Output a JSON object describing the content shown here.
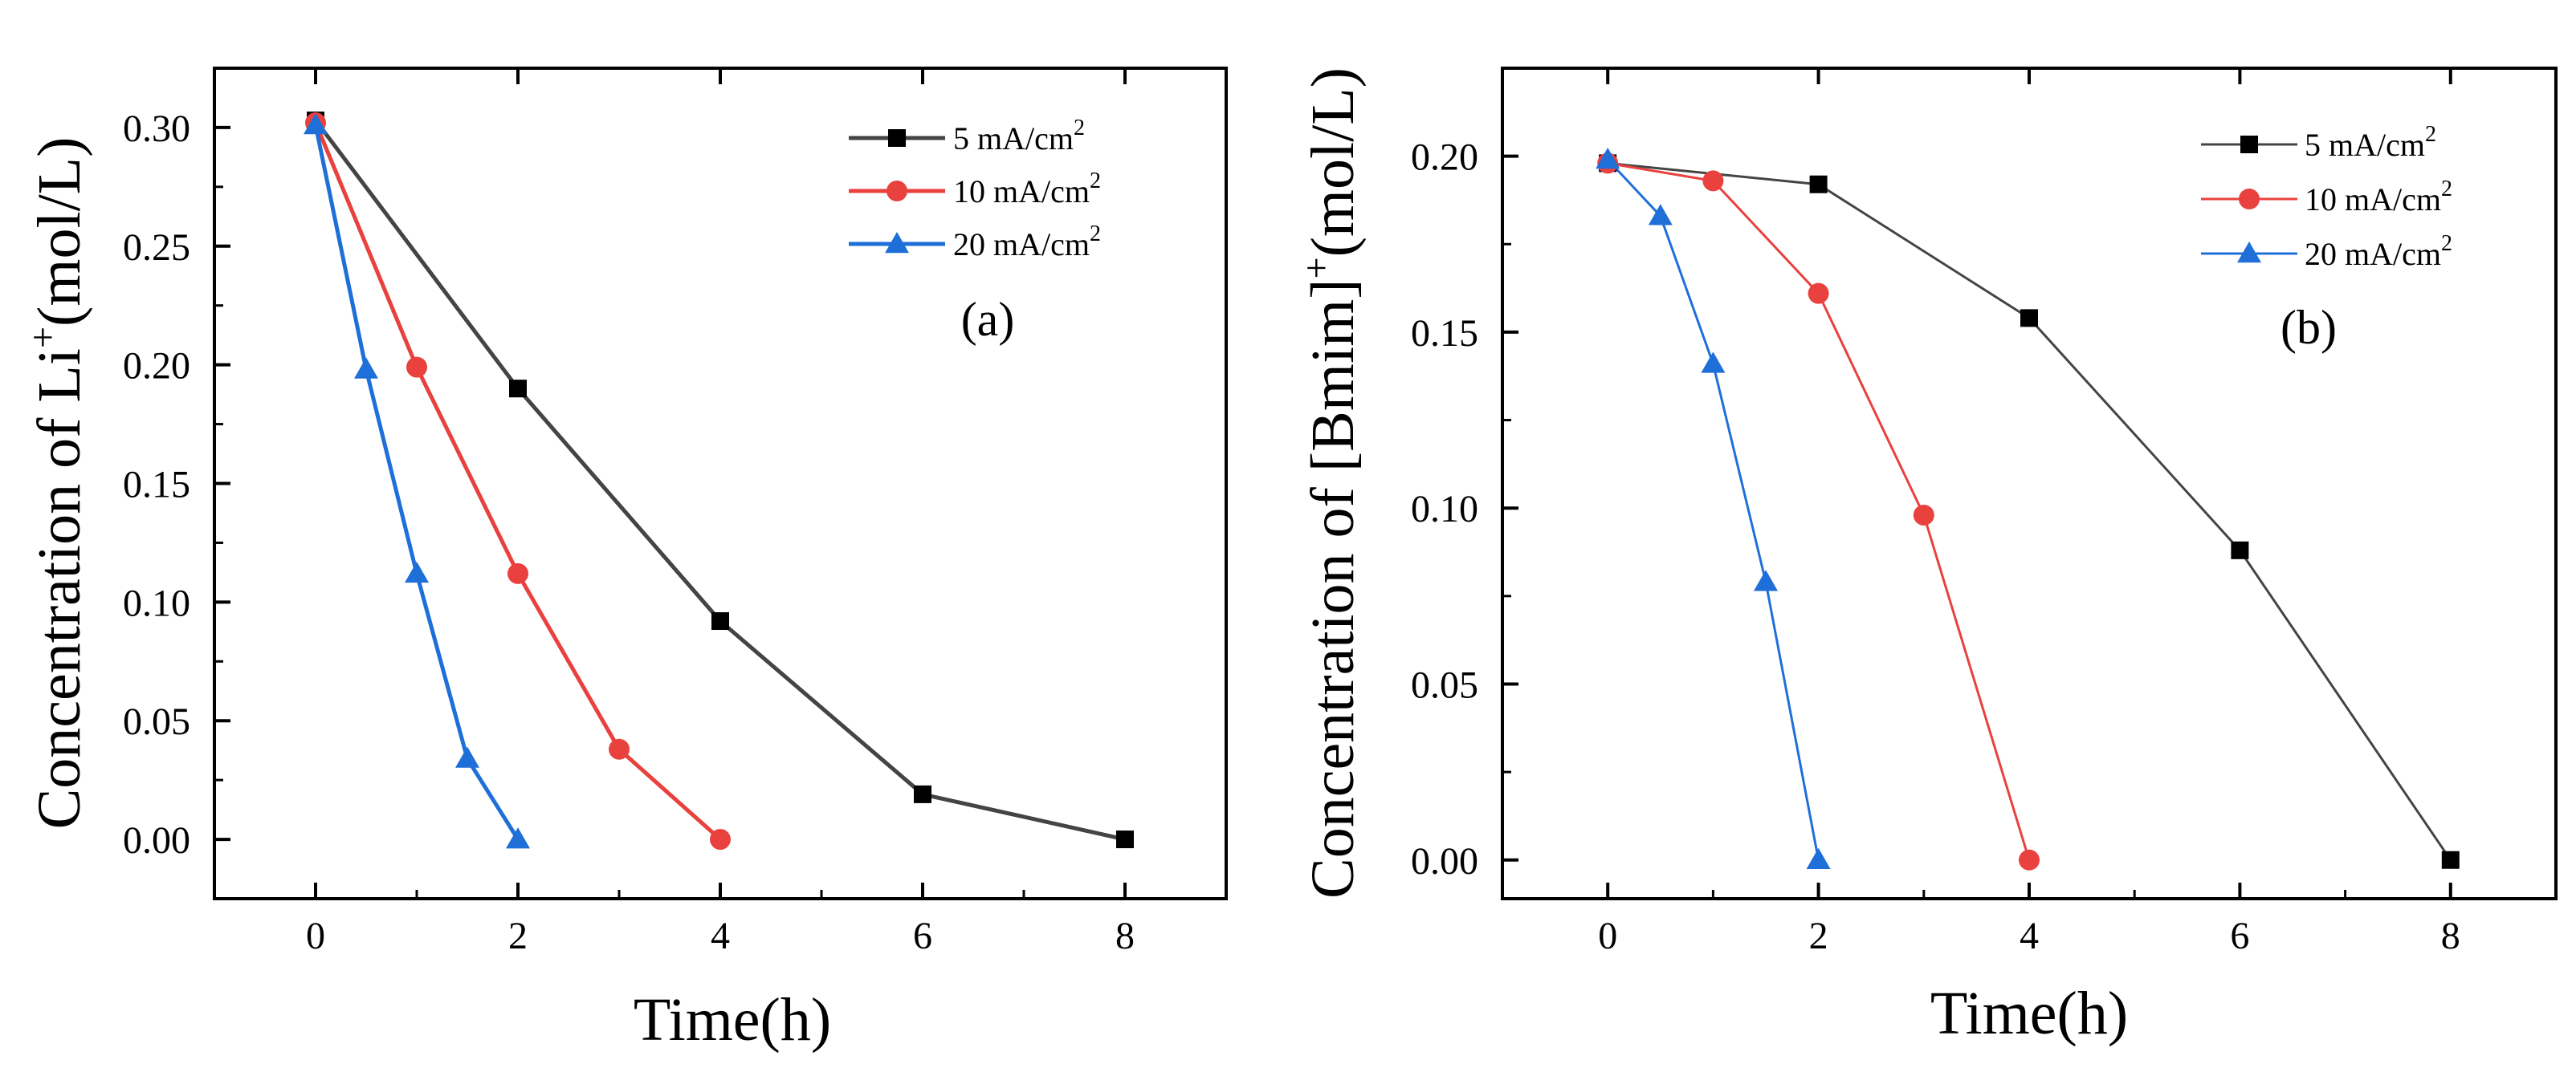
{
  "chart_data": [
    {
      "type": "line",
      "panel_label": "(a)",
      "xlabel": "Time(h)",
      "ylabel": {
        "main": "Concentration of Li",
        "sup": "+",
        "tail": "(mol/L)"
      },
      "xlim": [
        -1,
        9
      ],
      "ylim": [
        -0.025,
        0.325
      ],
      "xticks": [
        0,
        2,
        4,
        6,
        8
      ],
      "xtick_labels": [
        "0",
        "2",
        "4",
        "6",
        "8"
      ],
      "yticks": [
        0.0,
        0.05,
        0.1,
        0.15,
        0.2,
        0.25,
        0.3
      ],
      "ytick_labels": [
        "0.00",
        "0.05",
        "0.10",
        "0.15",
        "0.20",
        "0.25",
        "0.30"
      ],
      "legend_position": "top-right",
      "series": [
        {
          "name": "5 mA/cm",
          "sup": "2",
          "marker": "square",
          "color": "#000000",
          "line_color": "#444444",
          "x": [
            0,
            2,
            4,
            6,
            8
          ],
          "y": [
            0.303,
            0.19,
            0.092,
            0.019,
            0.0
          ]
        },
        {
          "name": "10 mA/cm",
          "sup": "2",
          "marker": "circle",
          "color": "#e8413e",
          "line_color": "#e8413e",
          "x": [
            0,
            1,
            2,
            3,
            4
          ],
          "y": [
            0.302,
            0.199,
            0.112,
            0.038,
            0.0
          ]
        },
        {
          "name": "20 mA/cm",
          "sup": "2",
          "marker": "triangle",
          "color": "#1f6fd9",
          "line_color": "#1f6fd9",
          "x": [
            0,
            0.5,
            1,
            1.5,
            2
          ],
          "y": [
            0.301,
            0.198,
            0.112,
            0.034,
            0.0
          ]
        }
      ]
    },
    {
      "type": "line",
      "panel_label": "(b)",
      "xlabel": "Time(h)",
      "ylabel": {
        "main": "Concentration of [Bmim]",
        "sup": "+",
        "tail": "(mol/L)"
      },
      "xlim": [
        -1,
        9
      ],
      "ylim": [
        -0.011,
        0.225
      ],
      "xticks": [
        0,
        2,
        4,
        6,
        8
      ],
      "xtick_labels": [
        "0",
        "2",
        "4",
        "6",
        "8"
      ],
      "yticks": [
        0.0,
        0.05,
        0.1,
        0.15,
        0.2
      ],
      "ytick_labels": [
        "0.00",
        "0.05",
        "0.10",
        "0.15",
        "0.20"
      ],
      "legend_position": "top-right",
      "series": [
        {
          "name": "5 mA/cm",
          "sup": "2",
          "marker": "square",
          "color": "#000000",
          "line_color": "#444444",
          "x": [
            0,
            2,
            4,
            6,
            8
          ],
          "y": [
            0.198,
            0.192,
            0.154,
            0.088,
            0.0
          ]
        },
        {
          "name": "10 mA/cm",
          "sup": "2",
          "marker": "circle",
          "color": "#e8413e",
          "line_color": "#e8413e",
          "x": [
            0,
            1,
            2,
            3,
            4
          ],
          "y": [
            0.198,
            0.193,
            0.161,
            0.098,
            0.0
          ]
        },
        {
          "name": "20 mA/cm",
          "sup": "2",
          "marker": "triangle",
          "color": "#1f6fd9",
          "line_color": "#1f6fd9",
          "x": [
            0,
            0.5,
            1,
            1.5,
            2
          ],
          "y": [
            0.199,
            0.183,
            0.141,
            0.079,
            0.0
          ]
        }
      ]
    }
  ]
}
